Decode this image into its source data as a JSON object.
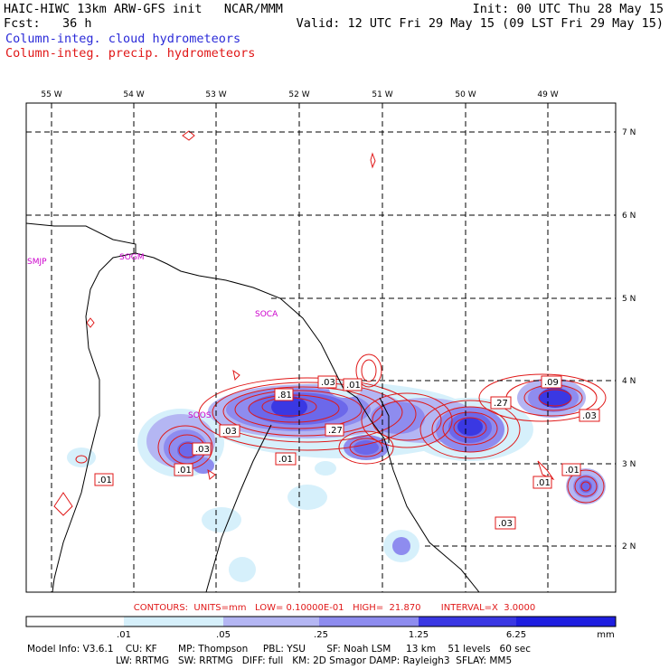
{
  "header": {
    "line1_left": "HAIC-HIWC 13km ARW-GFS init   NCAR/MMM",
    "line1_right": "Init: 00 UTC Thu 28 May 15",
    "line2_left": "Fcst:   36 h",
    "line2_right": "Valid: 12 UTC Fri 29 May 15 (09 LST Fri 29 May 15)",
    "line3": "Column-integ. cloud hydrometeors",
    "line4": "Column-integ. precip. hydrometeors"
  },
  "map": {
    "lon_labels": [
      "55 W",
      "54 W",
      "53 W",
      "52 W",
      "51 W",
      "50 W",
      "49 W"
    ],
    "lat_labels": [
      "7 N",
      "6 N",
      "5 N",
      "4 N",
      "3 N",
      "2 N"
    ],
    "stations": [
      "SMJP",
      "SOGM",
      "SOCA",
      "SOOS"
    ],
    "contour_labels": [
      ".01",
      ".03",
      ".01",
      ".81",
      ".03",
      ".27",
      ".01",
      ".27",
      ".03",
      ".01",
      ".01",
      ".03",
      ".01",
      ".09",
      ".03"
    ]
  },
  "info": {
    "contours_line": "CONTOURS:  UNITS=mm   LOW= 0.10000E-01   HIGH=  21.870       INTERVAL=X  3.0000"
  },
  "colorbar": {
    "ticks": [
      ".01",
      ".05",
      ".25",
      "1.25",
      "6.25"
    ],
    "unit": "mm",
    "colors": [
      "#ffffff",
      "#d6f0fb",
      "#b4b6f3",
      "#8e8cef",
      "#6c68ea",
      "#3a38e3",
      "#1e1ee0"
    ]
  },
  "footer": {
    "line1": "Model Info: V3.6.1    CU: KF       MP: Thompson     PBL: YSU       SF: Noah LSM     13 km    51 levels   60 sec",
    "line2": "LW: RRTMG   SW: RRTMG   DIFF: full   KM: 2D Smagor DAMP: Rayleigh3  SFLAY: MM5"
  }
}
